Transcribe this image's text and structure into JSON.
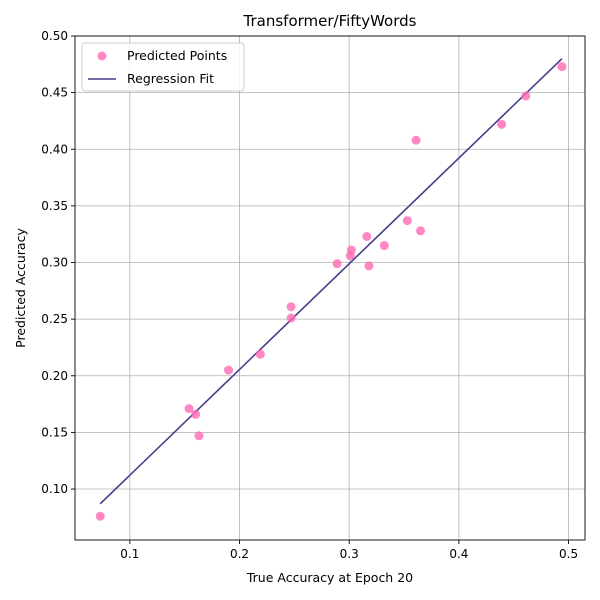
{
  "chart_data": {
    "type": "scatter",
    "title": "Transformer/FiftyWords",
    "xlabel": "True Accuracy at Epoch 20",
    "ylabel": "Predicted Accuracy",
    "xlim": [
      0.05,
      0.515
    ],
    "ylim": [
      0.055,
      0.5
    ],
    "xticks": [
      0.1,
      0.2,
      0.3,
      0.4,
      0.5
    ],
    "xtick_labels": [
      "0.1",
      "0.2",
      "0.3",
      "0.4",
      "0.5"
    ],
    "yticks": [
      0.1,
      0.15,
      0.2,
      0.25,
      0.3,
      0.35,
      0.4,
      0.45,
      0.5
    ],
    "ytick_labels": [
      "0.10",
      "0.15",
      "0.20",
      "0.25",
      "0.30",
      "0.35",
      "0.40",
      "0.45",
      "0.50"
    ],
    "grid": true,
    "legend_position": "top-left",
    "series": [
      {
        "name": "Predicted Points",
        "kind": "scatter",
        "color": "#ff69b4",
        "points": [
          [
            0.073,
            0.076
          ],
          [
            0.154,
            0.171
          ],
          [
            0.16,
            0.166
          ],
          [
            0.163,
            0.147
          ],
          [
            0.19,
            0.205
          ],
          [
            0.219,
            0.219
          ],
          [
            0.247,
            0.261
          ],
          [
            0.247,
            0.251
          ],
          [
            0.289,
            0.299
          ],
          [
            0.301,
            0.306
          ],
          [
            0.302,
            0.311
          ],
          [
            0.316,
            0.323
          ],
          [
            0.318,
            0.297
          ],
          [
            0.332,
            0.315
          ],
          [
            0.353,
            0.337
          ],
          [
            0.361,
            0.408
          ],
          [
            0.365,
            0.328
          ],
          [
            0.439,
            0.422
          ],
          [
            0.461,
            0.447
          ],
          [
            0.494,
            0.473
          ]
        ]
      },
      {
        "name": "Regression Fit",
        "kind": "line",
        "color": "#483d8b",
        "points": [
          [
            0.073,
            0.087
          ],
          [
            0.494,
            0.48
          ]
        ]
      }
    ]
  }
}
